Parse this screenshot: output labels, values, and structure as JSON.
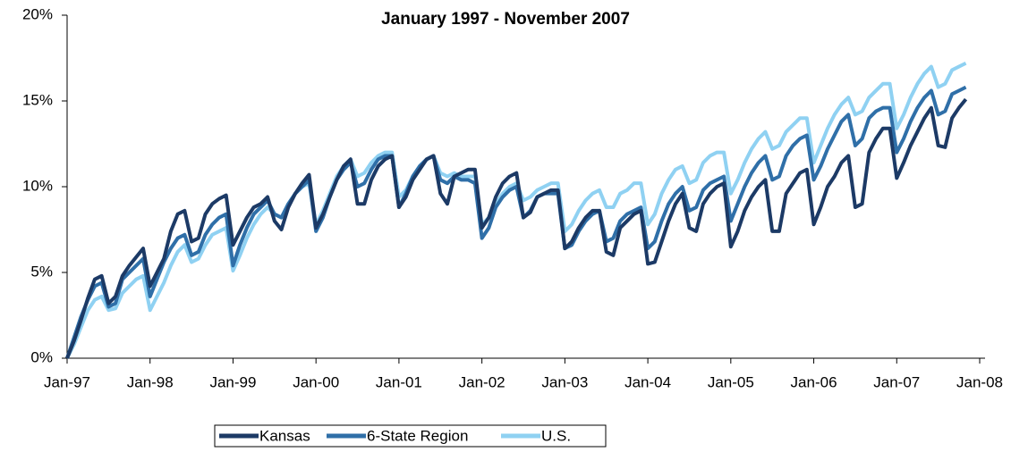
{
  "chart_data": {
    "type": "line",
    "title": "January 1997 - November 2007",
    "categories": [
      "Jan-97",
      null,
      null,
      null,
      null,
      null,
      null,
      null,
      null,
      null,
      null,
      null,
      "Jan-98",
      null,
      null,
      null,
      null,
      null,
      null,
      null,
      null,
      null,
      null,
      null,
      "Jan-99",
      null,
      null,
      null,
      null,
      null,
      null,
      null,
      null,
      null,
      null,
      null,
      "Jan-00",
      null,
      null,
      null,
      null,
      null,
      null,
      null,
      null,
      null,
      null,
      null,
      "Jan-01",
      null,
      null,
      null,
      null,
      null,
      null,
      null,
      null,
      null,
      null,
      null,
      "Jan-02",
      null,
      null,
      null,
      null,
      null,
      null,
      null,
      null,
      null,
      null,
      null,
      "Jan-03",
      null,
      null,
      null,
      null,
      null,
      null,
      null,
      null,
      null,
      null,
      null,
      "Jan-04",
      null,
      null,
      null,
      null,
      null,
      null,
      null,
      null,
      null,
      null,
      null,
      "Jan-05",
      null,
      null,
      null,
      null,
      null,
      null,
      null,
      null,
      null,
      null,
      null,
      "Jan-06",
      null,
      null,
      null,
      null,
      null,
      null,
      null,
      null,
      null,
      null,
      null,
      "Jan-07",
      null,
      null,
      null,
      null,
      null,
      null,
      null,
      null,
      null,
      null,
      null,
      "Jan-08"
    ],
    "series": [
      {
        "name": "Kansas",
        "color": "#1c3a66",
        "values": [
          0,
          1.0,
          2.2,
          3.5,
          4.6,
          4.8,
          3.2,
          3.6,
          4.8,
          5.4,
          5.9,
          6.4,
          4.2,
          5.0,
          5.8,
          7.4,
          8.4,
          8.6,
          6.8,
          7.0,
          8.4,
          9.0,
          9.3,
          9.5,
          6.6,
          7.4,
          8.2,
          8.8,
          9.0,
          9.4,
          8.0,
          7.5,
          8.8,
          9.6,
          10.2,
          10.7,
          7.6,
          8.4,
          9.4,
          10.4,
          11.2,
          11.6,
          9.0,
          9.0,
          10.4,
          11.2,
          11.6,
          11.8,
          8.8,
          9.4,
          10.4,
          11.0,
          11.6,
          11.8,
          9.6,
          9.0,
          10.6,
          10.8,
          11.0,
          11.0,
          7.6,
          8.2,
          9.4,
          10.2,
          10.6,
          10.8,
          8.2,
          8.5,
          9.4,
          9.6,
          9.8,
          9.8,
          6.4,
          6.8,
          7.6,
          8.2,
          8.6,
          8.6,
          6.2,
          6.0,
          7.6,
          8.0,
          8.4,
          8.6,
          5.5,
          5.6,
          6.8,
          8.0,
          9.0,
          9.6,
          7.6,
          7.4,
          9.0,
          9.6,
          10.0,
          10.2,
          6.5,
          7.4,
          8.6,
          9.4,
          10.0,
          10.4,
          7.4,
          7.4,
          9.6,
          10.2,
          10.8,
          11.0,
          7.8,
          8.8,
          10.0,
          10.6,
          11.4,
          11.8,
          8.8,
          9.0,
          12.0,
          12.8,
          13.4,
          13.4,
          10.5,
          11.4,
          12.4,
          13.2,
          14.0,
          14.6,
          12.4,
          12.3,
          14.0,
          14.6,
          15.1,
          null,
          null
        ]
      },
      {
        "name": "6-State Region",
        "color": "#2f6fa8",
        "values": [
          0,
          1.2,
          2.4,
          3.4,
          4.2,
          4.4,
          3.0,
          3.2,
          4.6,
          5.0,
          5.4,
          5.8,
          3.6,
          4.6,
          5.6,
          6.4,
          7.0,
          7.2,
          6.0,
          6.2,
          7.2,
          7.8,
          8.2,
          8.4,
          5.4,
          6.6,
          7.6,
          8.4,
          8.8,
          9.2,
          8.4,
          8.2,
          9.0,
          9.6,
          10.0,
          10.4,
          7.4,
          8.2,
          9.4,
          10.4,
          11.0,
          11.4,
          10.0,
          10.2,
          11.0,
          11.6,
          11.8,
          11.8,
          8.8,
          9.6,
          10.6,
          11.2,
          11.6,
          11.8,
          10.4,
          10.2,
          10.6,
          10.4,
          10.4,
          10.2,
          7.0,
          7.6,
          8.8,
          9.4,
          9.8,
          10.0,
          8.2,
          8.6,
          9.4,
          9.6,
          9.6,
          9.6,
          6.4,
          6.6,
          7.4,
          8.0,
          8.4,
          8.6,
          6.8,
          7.0,
          8.0,
          8.4,
          8.6,
          8.8,
          6.4,
          6.8,
          8.0,
          9.0,
          9.6,
          10.0,
          8.6,
          8.8,
          9.8,
          10.2,
          10.4,
          10.6,
          8.0,
          9.0,
          10.0,
          10.8,
          11.4,
          11.8,
          10.4,
          10.6,
          11.8,
          12.4,
          12.8,
          13.0,
          10.4,
          11.2,
          12.2,
          13.0,
          13.8,
          14.2,
          12.4,
          12.8,
          14.0,
          14.4,
          14.6,
          14.6,
          12.0,
          12.8,
          13.8,
          14.6,
          15.2,
          15.6,
          14.2,
          14.4,
          15.4,
          15.6,
          15.8,
          null,
          null
        ]
      },
      {
        "name": "U.S.",
        "color": "#8fd1f2",
        "values": [
          0,
          0.8,
          1.8,
          2.8,
          3.4,
          3.6,
          2.8,
          2.9,
          3.8,
          4.2,
          4.6,
          4.8,
          2.8,
          3.6,
          4.4,
          5.4,
          6.2,
          6.6,
          5.6,
          5.8,
          6.6,
          7.2,
          7.4,
          7.6,
          5.1,
          6.0,
          7.0,
          7.8,
          8.4,
          8.8,
          8.4,
          8.2,
          9.0,
          9.6,
          10.0,
          10.2,
          7.8,
          8.6,
          9.6,
          10.6,
          11.2,
          11.6,
          10.6,
          10.8,
          11.4,
          11.8,
          12.0,
          12.0,
          9.4,
          9.8,
          10.6,
          11.2,
          11.6,
          11.8,
          10.8,
          10.6,
          10.8,
          10.6,
          10.6,
          10.6,
          7.8,
          8.2,
          9.0,
          9.6,
          10.0,
          10.2,
          9.2,
          9.4,
          9.8,
          10.0,
          10.2,
          10.2,
          7.4,
          7.8,
          8.6,
          9.2,
          9.6,
          9.8,
          8.8,
          8.8,
          9.6,
          9.8,
          10.2,
          10.2,
          7.8,
          8.4,
          9.6,
          10.4,
          11.0,
          11.2,
          10.2,
          10.4,
          11.4,
          11.8,
          12.0,
          12.0,
          9.6,
          10.4,
          11.4,
          12.2,
          12.8,
          13.2,
          12.2,
          12.4,
          13.2,
          13.6,
          14.0,
          14.0,
          11.4,
          12.4,
          13.4,
          14.2,
          14.8,
          15.2,
          14.2,
          14.4,
          15.2,
          15.6,
          16.0,
          16.0,
          13.4,
          14.2,
          15.2,
          16.0,
          16.6,
          17.0,
          15.8,
          16.0,
          16.8,
          17.0,
          17.2,
          null,
          null
        ]
      }
    ],
    "ylim": [
      0,
      20
    ],
    "yticks": [
      {
        "value": 0,
        "label": "0%"
      },
      {
        "value": 5,
        "label": "5%"
      },
      {
        "value": 10,
        "label": "10%"
      },
      {
        "value": 15,
        "label": "15%"
      },
      {
        "value": 20,
        "label": "20%"
      }
    ]
  }
}
